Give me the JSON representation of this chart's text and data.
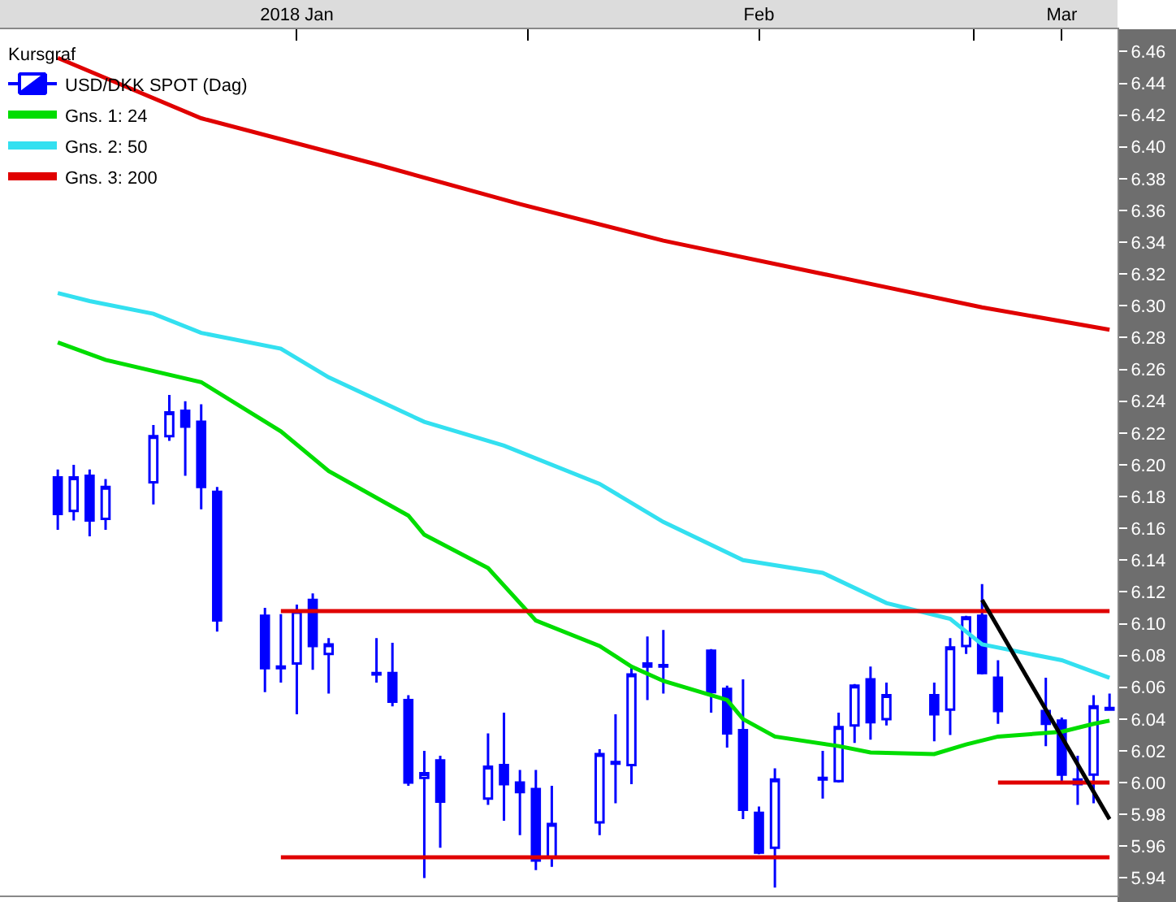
{
  "chart_data": {
    "type": "candlestick",
    "legend_title": "Kursgraf",
    "series": [
      {
        "name": "USD/DKK SPOT (Dag)",
        "color": "#0000ff",
        "x": [
          "2018-01-02",
          "2018-01-03",
          "2018-01-04",
          "2018-01-05",
          "2018-01-08",
          "2018-01-09",
          "2018-01-10",
          "2018-01-11",
          "2018-01-12",
          "2018-01-15",
          "2018-01-16",
          "2018-01-17",
          "2018-01-18",
          "2018-01-19",
          "2018-01-22",
          "2018-01-23",
          "2018-01-24",
          "2018-01-25",
          "2018-01-26",
          "2018-01-29",
          "2018-01-30",
          "2018-01-31",
          "2018-02-01",
          "2018-02-02",
          "2018-02-05",
          "2018-02-06",
          "2018-02-07",
          "2018-02-08",
          "2018-02-09",
          "2018-02-12",
          "2018-02-13",
          "2018-02-14",
          "2018-02-15",
          "2018-02-16",
          "2018-02-19",
          "2018-02-20",
          "2018-02-21",
          "2018-02-22",
          "2018-02-23",
          "2018-02-26",
          "2018-02-27",
          "2018-02-28",
          "2018-03-01",
          "2018-03-02",
          "2018-03-05",
          "2018-03-06",
          "2018-03-07",
          "2018-03-08",
          "2018-03-09"
        ],
        "ohlc": [
          [
            6.192,
            6.197,
            6.159,
            6.169
          ],
          [
            6.171,
            6.2,
            6.165,
            6.192
          ],
          [
            6.193,
            6.197,
            6.155,
            6.165
          ],
          [
            6.166,
            6.191,
            6.159,
            6.186
          ],
          [
            6.189,
            6.225,
            6.175,
            6.218
          ],
          [
            6.218,
            6.244,
            6.215,
            6.233
          ],
          [
            6.234,
            6.24,
            6.193,
            6.224
          ],
          [
            6.227,
            6.238,
            6.172,
            6.186
          ],
          [
            6.183,
            6.186,
            6.095,
            6.102
          ],
          [
            6.105,
            6.11,
            6.057,
            6.072
          ],
          [
            6.072,
            6.106,
            6.063,
            6.073
          ],
          [
            6.075,
            6.112,
            6.043,
            6.108
          ],
          [
            6.115,
            6.119,
            6.071,
            6.086
          ],
          [
            6.081,
            6.091,
            6.056,
            6.087
          ],
          [
            6.069,
            6.091,
            6.063,
            6.068
          ],
          [
            6.069,
            6.088,
            6.048,
            6.051
          ],
          [
            6.052,
            6.055,
            5.998,
            6.0
          ],
          [
            6.003,
            6.02,
            5.94,
            6.006
          ],
          [
            6.014,
            6.017,
            5.959,
            5.988
          ],
          [
            5.99,
            6.031,
            5.986,
            6.01
          ],
          [
            6.011,
            6.044,
            5.976,
            5.999
          ],
          [
            6.0,
            6.008,
            5.967,
            5.994
          ],
          [
            5.996,
            6.008,
            5.945,
            5.951
          ],
          [
            5.953,
            5.998,
            5.947,
            5.974
          ],
          [
            5.975,
            6.021,
            5.967,
            6.018
          ],
          [
            6.013,
            6.043,
            5.987,
            6.012
          ],
          [
            6.011,
            6.074,
            5.999,
            6.068
          ],
          [
            6.073,
            6.092,
            6.052,
            6.075
          ],
          [
            6.074,
            6.096,
            6.056,
            6.073
          ],
          [
            6.083,
            6.084,
            6.044,
            6.057
          ],
          [
            6.059,
            6.061,
            6.022,
            6.031
          ],
          [
            6.033,
            6.065,
            5.977,
            5.983
          ],
          [
            5.981,
            5.985,
            5.955,
            5.956
          ],
          [
            5.959,
            6.009,
            5.934,
            6.002
          ],
          [
            6.002,
            6.02,
            5.99,
            6.003
          ],
          [
            6.001,
            6.044,
            6.0,
            6.035
          ],
          [
            6.036,
            6.062,
            6.025,
            6.061
          ],
          [
            6.065,
            6.073,
            6.027,
            6.038
          ],
          [
            6.04,
            6.063,
            6.036,
            6.055
          ],
          [
            6.055,
            6.063,
            6.026,
            6.043
          ],
          [
            6.046,
            6.091,
            6.03,
            6.085
          ],
          [
            6.086,
            6.105,
            6.081,
            6.104
          ],
          [
            6.105,
            6.125,
            6.068,
            6.069
          ],
          [
            6.066,
            6.077,
            6.037,
            6.045
          ],
          [
            6.045,
            6.066,
            6.023,
            6.037
          ],
          [
            6.039,
            6.041,
            5.999,
            6.005
          ],
          [
            5.999,
            6.017,
            5.986,
            6.002
          ],
          [
            6.005,
            6.055,
            5.987,
            6.048
          ],
          [
            6.046,
            6.056,
            6.046,
            6.047
          ]
        ]
      },
      {
        "type": "line",
        "name": "Gns. 1: 24",
        "color": "#00dd00",
        "x": [
          "2018-01-02",
          "2018-01-05",
          "2018-01-11",
          "2018-01-16",
          "2018-01-19",
          "2018-01-24",
          "2018-01-25",
          "2018-01-29",
          "2018-02-01",
          "2018-02-05",
          "2018-02-07",
          "2018-02-09",
          "2018-02-13",
          "2018-02-14",
          "2018-02-16",
          "2018-02-20",
          "2018-02-22",
          "2018-02-26",
          "2018-02-28",
          "2018-03-02",
          "2018-03-06",
          "2018-03-08",
          "2018-03-09"
        ],
        "values": [
          6.277,
          6.266,
          6.252,
          6.221,
          6.196,
          6.168,
          6.156,
          6.135,
          6.102,
          6.086,
          6.073,
          6.064,
          6.052,
          6.04,
          6.029,
          6.023,
          6.019,
          6.018,
          6.024,
          6.029,
          6.032,
          6.037,
          6.039
        ]
      },
      {
        "type": "line",
        "name": "Gns. 2: 50",
        "color": "#33e0f0",
        "x": [
          "2018-01-02",
          "2018-01-04",
          "2018-01-08",
          "2018-01-11",
          "2018-01-16",
          "2018-01-19",
          "2018-01-25",
          "2018-01-30",
          "2018-02-05",
          "2018-02-09",
          "2018-02-14",
          "2018-02-19",
          "2018-02-23",
          "2018-02-27",
          "2018-03-01",
          "2018-03-06",
          "2018-03-09"
        ],
        "values": [
          6.308,
          6.303,
          6.295,
          6.283,
          6.273,
          6.255,
          6.227,
          6.212,
          6.188,
          6.164,
          6.14,
          6.132,
          6.113,
          6.103,
          6.087,
          6.077,
          6.066
        ]
      },
      {
        "type": "line",
        "name": "Gns. 3: 200",
        "color": "#e00000",
        "x": [
          "2018-01-02",
          "2018-01-11",
          "2018-01-22",
          "2018-01-31",
          "2018-02-09",
          "2018-02-20",
          "2018-03-01",
          "2018-03-09"
        ],
        "values": [
          6.456,
          6.418,
          6.389,
          6.364,
          6.341,
          6.318,
          6.299,
          6.285
        ]
      },
      {
        "type": "line",
        "color": "#e00000",
        "x": [
          "2018-01-16",
          "2018-03-09"
        ],
        "values": [
          6.108,
          6.108
        ]
      },
      {
        "type": "line",
        "color": "#e00000",
        "x": [
          "2018-01-16",
          "2018-03-09"
        ],
        "values": [
          5.953,
          5.953
        ]
      },
      {
        "type": "line",
        "color": "#e00000",
        "x": [
          "2018-03-02",
          "2018-03-09"
        ],
        "values": [
          6.0,
          6.0
        ]
      },
      {
        "type": "line",
        "color": "#000000",
        "x": [
          "2018-03-01",
          "2018-03-09"
        ],
        "values": [
          6.115,
          5.977
        ]
      }
    ],
    "xlim": [
      "2017-12-29T09:00",
      "2018-03-09T12:00"
    ],
    "xticks": [
      {
        "value": "2018-01-17",
        "label": "2018 Jan"
      },
      {
        "value": "2018-01-31T12:00",
        "label": null
      },
      {
        "value": "2018-02-15",
        "label": "Feb"
      },
      {
        "value": "2018-02-28T12:00",
        "label": null
      },
      {
        "value": "2018-03-06",
        "label": "Mar"
      }
    ],
    "ylim": [
      5.929,
      6.474
    ],
    "yticks": [
      5.94,
      5.96,
      5.98,
      {
        "value": 6.0,
        "label": "6.00"
      },
      6.02,
      6.04,
      6.06,
      6.08,
      {
        "value": 6.1,
        "label": "6.10"
      },
      6.12,
      6.14,
      6.16,
      6.18,
      {
        "value": 6.2,
        "label": "6.20"
      },
      6.22,
      6.24,
      6.26,
      6.28,
      {
        "value": 6.3,
        "label": "6.30"
      },
      6.32,
      6.34,
      6.36,
      6.38,
      {
        "value": 6.4,
        "label": "6.40"
      },
      6.42,
      6.44,
      6.46
    ],
    "legend": "top left",
    "marker": "none",
    "line_style": "solid"
  }
}
